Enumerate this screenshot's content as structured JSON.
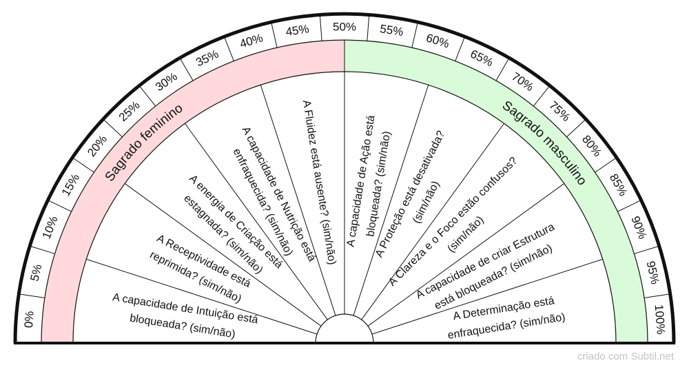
{
  "colors": {
    "feminine_band": "#ffd9dc",
    "masculine_band": "#d9fbd9",
    "ink": "#111111",
    "footer": "#c4c4c4"
  },
  "scale": {
    "ticks": [
      "0%",
      "5%",
      "10%",
      "15%",
      "20%",
      "25%",
      "30%",
      "35%",
      "40%",
      "45%",
      "50%",
      "55%",
      "60%",
      "65%",
      "70%",
      "75%",
      "80%",
      "85%",
      "90%",
      "95%",
      "100%"
    ]
  },
  "bands": {
    "left_label": "Sagrado feminino",
    "right_label": "Sagrado masculino"
  },
  "sectors": [
    {
      "line1": "A capacidade de Intuição está",
      "line2": "bloqueada? (sim/não)"
    },
    {
      "line1": "A Receptividade está",
      "line2": "reprimida? (sim/não)"
    },
    {
      "line1": "A energia de Criação está",
      "line2": "estagnada? (sim/não)"
    },
    {
      "line1": "A capacidade de Nutrição está",
      "line2": "enfraquecida? (sim/não)"
    },
    {
      "line1": "A Fluidez está ausente? (sim/não)",
      "line2": ""
    },
    {
      "line1": "A capacidade de Ação está",
      "line2": "bloqueada? (sim/não)"
    },
    {
      "line1": "A Proteção está desativada?",
      "line2": "(sim/não)"
    },
    {
      "line1": "A Clareza e o Foco estão confusos?",
      "line2": "(sim/não)"
    },
    {
      "line1": "A capacidade de criar Estrutura",
      "line2": "está bloqueada? (sim/não)"
    },
    {
      "line1": "A Determinação está",
      "line2": "enfraquecida? (sim/não)"
    }
  ],
  "footer": "criado com Subtil.net"
}
